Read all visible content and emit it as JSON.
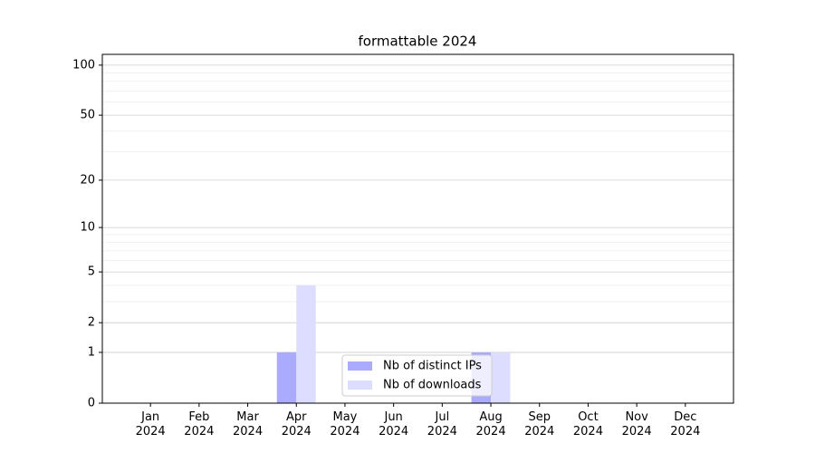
{
  "chart_data": {
    "type": "bar",
    "title": "formattable 2024",
    "categories": [
      "Jan 2024",
      "Feb 2024",
      "Mar 2024",
      "Apr 2024",
      "May 2024",
      "Jun 2024",
      "Jul 2024",
      "Aug 2024",
      "Sep 2024",
      "Oct 2024",
      "Nov 2024",
      "Dec 2024"
    ],
    "series": [
      {
        "name": "Nb of distinct IPs",
        "color": "#aaaaff",
        "values": [
          0,
          0,
          0,
          1,
          0,
          0,
          0,
          1,
          0,
          0,
          0,
          0
        ]
      },
      {
        "name": "Nb of downloads",
        "color": "#ddddff",
        "values": [
          0,
          0,
          0,
          4,
          0,
          0,
          0,
          1,
          0,
          0,
          0,
          0
        ]
      }
    ],
    "yscale": "log1p",
    "ylim": [
      0,
      116
    ],
    "yticks": [
      0,
      1,
      2,
      5,
      10,
      20,
      50,
      100
    ],
    "minor_yticks": [
      3,
      4,
      6,
      7,
      8,
      9,
      30,
      40,
      60,
      70,
      80,
      90
    ],
    "grid": true,
    "legend": "lower center"
  }
}
